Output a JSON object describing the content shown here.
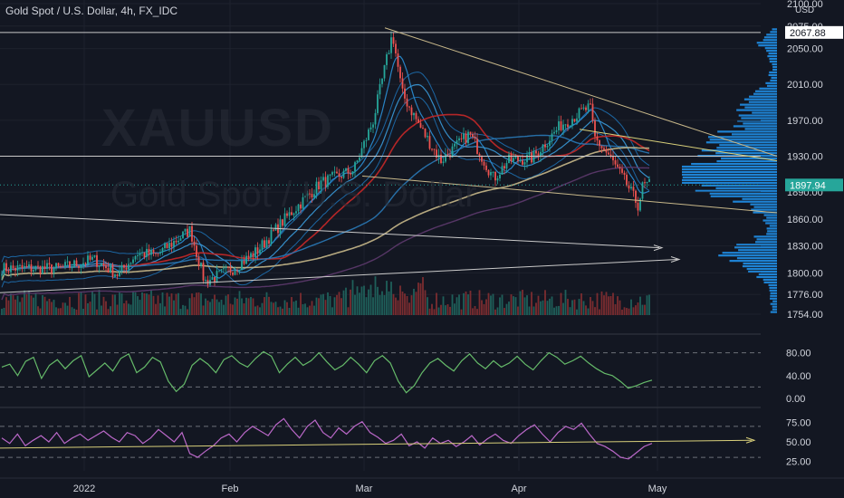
{
  "title": "Gold Spot / U.S. Dollar, 4h, FX_IDC",
  "watermark": {
    "symbol": "XAUUSD",
    "description": "Gold Spot / U.S. Dollar"
  },
  "colors": {
    "background": "#131722",
    "axis_text": "#d1d4dc",
    "up_candle": "#26a69a",
    "down_candle": "#ef5350",
    "volume_profile": "#2196f3",
    "ma_red": "#c62828",
    "ma_tan": "#c8b88a",
    "ma_purple": "#5e3a6e",
    "ma_blue": "#2b8fd6",
    "line_white": "#c9c9c9",
    "line_yellow": "#d8cf7a",
    "osc1_line": "#66bb6a",
    "osc2_line": "#ba68c8"
  },
  "chart_data": [
    {
      "type": "candlestick",
      "currency": "USD",
      "current_price_label": "1897.94",
      "marked_level_label": "2067.88",
      "y_ticks": [
        "2100.00",
        "2075.00",
        "2050.00",
        "2010.00",
        "1970.00",
        "1930.00",
        "1890.00",
        "1860.00",
        "1830.00",
        "1800.00",
        "1776.00",
        "1754.00"
      ],
      "x_ticks": [
        "2022",
        "Feb",
        "Mar",
        "Apr",
        "May"
      ],
      "ylim": [
        1754,
        2100
      ],
      "price_path": [
        [
          "2021-12-29",
          1805
        ],
        [
          "2022-01-05",
          1815
        ],
        [
          "2022-01-10",
          1798
        ],
        [
          "2022-01-14",
          1822
        ],
        [
          "2022-01-18",
          1820
        ],
        [
          "2022-01-25",
          1848
        ],
        [
          "2022-01-28",
          1790
        ],
        [
          "2022-02-03",
          1805
        ],
        [
          "2022-02-08",
          1825
        ],
        [
          "2022-02-14",
          1862
        ],
        [
          "2022-02-21",
          1900
        ],
        [
          "2022-02-28",
          1915
        ],
        [
          "2022-03-04",
          1970
        ],
        [
          "2022-03-08",
          2067
        ],
        [
          "2022-03-10",
          2000
        ],
        [
          "2022-03-14",
          1960
        ],
        [
          "2022-03-18",
          1925
        ],
        [
          "2022-03-24",
          1955
        ],
        [
          "2022-03-29",
          1905
        ],
        [
          "2022-04-01",
          1925
        ],
        [
          "2022-04-06",
          1928
        ],
        [
          "2022-04-12",
          1965
        ],
        [
          "2022-04-18",
          1985
        ],
        [
          "2022-04-19",
          1950
        ],
        [
          "2022-04-22",
          1930
        ],
        [
          "2022-04-26",
          1895
        ],
        [
          "2022-04-28",
          1875
        ],
        [
          "2022-04-29",
          1898
        ]
      ]
    },
    {
      "type": "line",
      "name": "oscillator-1",
      "y_ticks": [
        "80.00",
        "40.00",
        "0.00"
      ],
      "ylim": [
        0,
        100
      ],
      "dashed_levels": [
        80,
        20
      ],
      "values": [
        55,
        60,
        40,
        65,
        72,
        35,
        58,
        68,
        52,
        66,
        75,
        38,
        50,
        62,
        48,
        70,
        78,
        45,
        55,
        72,
        64,
        30,
        12,
        25,
        58,
        70,
        60,
        45,
        68,
        75,
        62,
        55,
        70,
        82,
        74,
        45,
        60,
        72,
        58,
        66,
        80,
        64,
        50,
        58,
        72,
        60,
        45,
        66,
        75,
        62,
        30,
        10,
        22,
        45,
        62,
        70,
        58,
        48,
        66,
        78,
        62,
        52,
        66,
        55,
        62,
        74,
        60,
        50,
        66,
        80,
        72,
        60,
        66,
        74,
        62,
        52,
        44,
        40,
        30,
        18,
        22,
        28,
        32
      ]
    },
    {
      "type": "line",
      "name": "oscillator-2",
      "y_ticks": [
        "75.00",
        "50.00",
        "25.00"
      ],
      "ylim": [
        15,
        85
      ],
      "dashed_levels": [
        70,
        30
      ],
      "values": [
        55,
        48,
        60,
        45,
        52,
        58,
        50,
        62,
        48,
        55,
        60,
        52,
        58,
        64,
        56,
        50,
        62,
        58,
        48,
        55,
        66,
        58,
        50,
        62,
        35,
        30,
        38,
        45,
        55,
        60,
        50,
        62,
        70,
        64,
        58,
        72,
        80,
        66,
        55,
        70,
        78,
        62,
        55,
        68,
        60,
        70,
        76,
        62,
        56,
        48,
        52,
        60,
        45,
        50,
        42,
        55,
        48,
        52,
        44,
        50,
        58,
        46,
        54,
        60,
        52,
        48,
        58,
        66,
        72,
        60,
        50,
        62,
        70,
        66,
        74,
        60,
        48,
        44,
        38,
        30,
        28,
        36,
        44,
        48
      ]
    }
  ]
}
